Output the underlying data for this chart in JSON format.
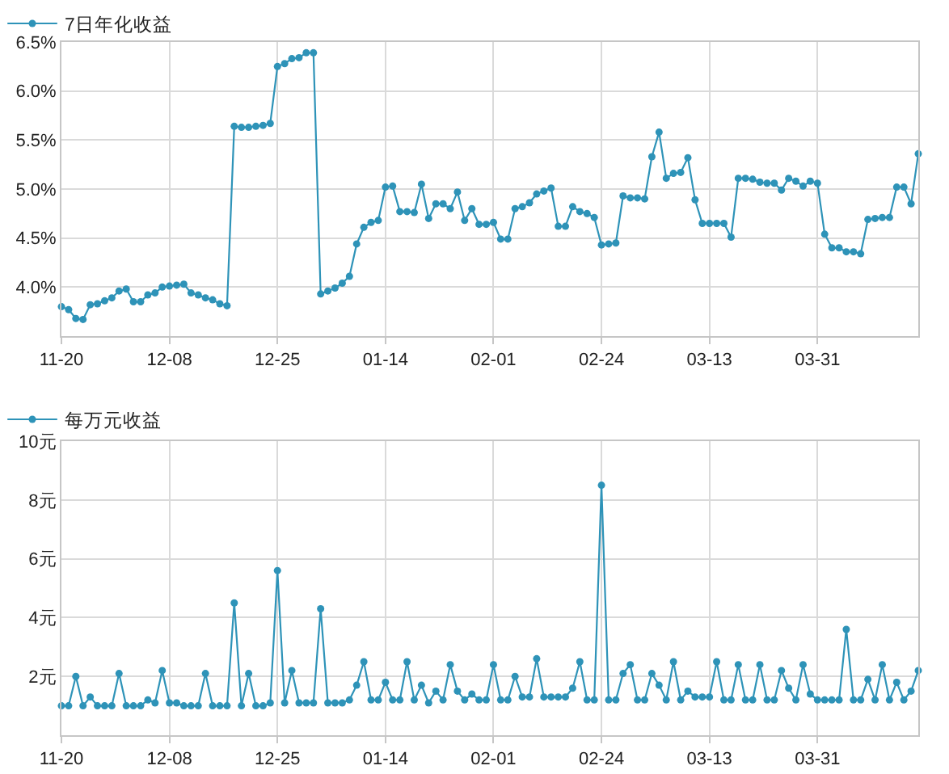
{
  "chart_data": [
    {
      "type": "line",
      "categories": [
        "11-20",
        null,
        null,
        null,
        null,
        null,
        null,
        null,
        null,
        null,
        null,
        null,
        null,
        null,
        null,
        "12-08",
        null,
        null,
        null,
        null,
        null,
        null,
        null,
        null,
        null,
        null,
        null,
        null,
        null,
        null,
        "12-25",
        null,
        null,
        null,
        null,
        null,
        null,
        null,
        null,
        null,
        null,
        null,
        null,
        null,
        null,
        "01-14",
        null,
        null,
        null,
        null,
        null,
        null,
        null,
        null,
        null,
        null,
        null,
        null,
        null,
        null,
        "02-01",
        null,
        null,
        null,
        null,
        null,
        null,
        null,
        null,
        null,
        null,
        null,
        null,
        null,
        null,
        "02-24",
        null,
        null,
        null,
        null,
        null,
        null,
        null,
        null,
        null,
        null,
        null,
        null,
        null,
        null,
        "03-13",
        null,
        null,
        null,
        null,
        null,
        null,
        null,
        null,
        null,
        null,
        null,
        null,
        null,
        null,
        "03-31",
        null,
        null,
        null,
        null,
        null,
        null,
        null,
        null,
        null,
        null,
        null,
        null,
        null,
        null
      ],
      "series": [
        {
          "name": "7日年化收益",
          "color": "#2e93b8",
          "values": [
            3.8,
            3.77,
            3.68,
            3.67,
            3.82,
            3.83,
            3.86,
            3.89,
            3.96,
            3.98,
            3.85,
            3.85,
            3.92,
            3.94,
            4.0,
            4.01,
            4.02,
            4.03,
            3.94,
            3.92,
            3.89,
            3.87,
            3.83,
            3.81,
            5.64,
            5.63,
            5.63,
            5.64,
            5.65,
            5.67,
            6.25,
            6.28,
            6.33,
            6.34,
            6.39,
            6.39,
            3.93,
            3.96,
            3.99,
            4.04,
            4.11,
            4.44,
            4.61,
            4.66,
            4.68,
            5.02,
            5.03,
            4.77,
            4.77,
            4.76,
            5.05,
            4.7,
            4.85,
            4.85,
            4.8,
            4.97,
            4.68,
            4.8,
            4.64,
            4.64,
            4.66,
            4.49,
            4.49,
            4.8,
            4.82,
            4.86,
            4.95,
            4.98,
            5.01,
            4.62,
            4.62,
            4.82,
            4.77,
            4.75,
            4.71,
            4.43,
            4.44,
            4.45,
            4.93,
            4.91,
            4.91,
            4.9,
            5.33,
            5.58,
            5.11,
            5.16,
            5.17,
            5.32,
            4.89,
            4.65,
            4.65,
            4.65,
            4.65,
            4.51,
            5.11,
            5.11,
            5.1,
            5.07,
            5.06,
            5.06,
            4.99,
            5.11,
            5.08,
            5.03,
            5.08,
            5.06,
            4.54,
            4.4,
            4.4,
            4.36,
            4.36,
            4.34,
            4.69,
            4.7,
            4.71,
            4.71,
            5.02,
            5.02,
            4.85,
            5.36
          ]
        }
      ],
      "ylim": [
        3.5,
        6.5
      ],
      "yticks": [
        {
          "value": 4.0,
          "label": "4.0%"
        },
        {
          "value": 4.5,
          "label": "4.5%"
        },
        {
          "value": 5.0,
          "label": "5.0%"
        },
        {
          "value": 5.5,
          "label": "5.5%"
        },
        {
          "value": 6.0,
          "label": "6.0%"
        },
        {
          "value": 6.5,
          "label": "6.5%"
        }
      ],
      "grid": true,
      "legend": "top left",
      "marker": "circle",
      "line_style": "solid"
    },
    {
      "type": "line",
      "categories": [
        "11-20",
        null,
        null,
        null,
        null,
        null,
        null,
        null,
        null,
        null,
        null,
        null,
        null,
        null,
        null,
        "12-08",
        null,
        null,
        null,
        null,
        null,
        null,
        null,
        null,
        null,
        null,
        null,
        null,
        null,
        null,
        "12-25",
        null,
        null,
        null,
        null,
        null,
        null,
        null,
        null,
        null,
        null,
        null,
        null,
        null,
        null,
        "01-14",
        null,
        null,
        null,
        null,
        null,
        null,
        null,
        null,
        null,
        null,
        null,
        null,
        null,
        null,
        "02-01",
        null,
        null,
        null,
        null,
        null,
        null,
        null,
        null,
        null,
        null,
        null,
        null,
        null,
        null,
        "02-24",
        null,
        null,
        null,
        null,
        null,
        null,
        null,
        null,
        null,
        null,
        null,
        null,
        null,
        null,
        "03-13",
        null,
        null,
        null,
        null,
        null,
        null,
        null,
        null,
        null,
        null,
        null,
        null,
        null,
        null,
        "03-31",
        null,
        null,
        null,
        null,
        null,
        null,
        null,
        null,
        null,
        null,
        null,
        null,
        null,
        null
      ],
      "series": [
        {
          "name": "每万元收益",
          "color": "#2e93b8",
          "values": [
            1.0,
            1.0,
            2.0,
            1.0,
            1.3,
            1.0,
            1.0,
            1.0,
            2.1,
            1.0,
            1.0,
            1.0,
            1.2,
            1.1,
            2.2,
            1.1,
            1.1,
            1.0,
            1.0,
            1.0,
            2.1,
            1.0,
            1.0,
            1.0,
            4.5,
            1.0,
            2.1,
            1.0,
            1.0,
            1.1,
            5.6,
            1.1,
            2.2,
            1.1,
            1.1,
            1.1,
            4.3,
            1.1,
            1.1,
            1.1,
            1.2,
            1.7,
            2.5,
            1.2,
            1.2,
            1.8,
            1.2,
            1.2,
            2.5,
            1.2,
            1.7,
            1.1,
            1.5,
            1.2,
            2.4,
            1.5,
            1.2,
            1.4,
            1.2,
            1.2,
            2.4,
            1.2,
            1.2,
            2.0,
            1.3,
            1.3,
            2.6,
            1.3,
            1.3,
            1.3,
            1.3,
            1.6,
            2.5,
            1.2,
            1.2,
            8.5,
            1.2,
            1.2,
            2.1,
            2.4,
            1.2,
            1.2,
            2.1,
            1.7,
            1.2,
            2.5,
            1.2,
            1.5,
            1.3,
            1.3,
            1.3,
            2.5,
            1.2,
            1.2,
            2.4,
            1.2,
            1.2,
            2.4,
            1.2,
            1.2,
            2.2,
            1.6,
            1.2,
            2.4,
            1.4,
            1.2,
            1.2,
            1.2,
            1.2,
            3.6,
            1.2,
            1.2,
            1.9,
            1.2,
            2.4,
            1.2,
            1.8,
            1.2,
            1.5,
            2.2
          ]
        }
      ],
      "ylim": [
        0,
        10
      ],
      "yticks": [
        {
          "value": 2,
          "label": "2元"
        },
        {
          "value": 4,
          "label": "4元"
        },
        {
          "value": 6,
          "label": "6元"
        },
        {
          "value": 8,
          "label": "8元"
        },
        {
          "value": 10,
          "label": "10元"
        }
      ],
      "grid": true,
      "legend": "top left",
      "marker": "circle",
      "line_style": "solid"
    }
  ]
}
